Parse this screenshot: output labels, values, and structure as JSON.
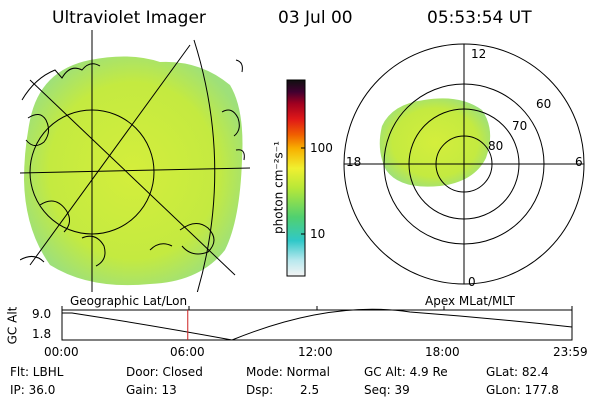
{
  "header": {
    "title": "Ultraviolet Imager",
    "date": "03 Jul 00",
    "time": "05:53:54 UT"
  },
  "colorbar": {
    "label": "photon cm⁻²s⁻¹",
    "ticks": [
      "100",
      "10"
    ]
  },
  "polar_plot": {
    "mlt_labels": {
      "top": "12",
      "left": "18",
      "right": "6",
      "bottom": "0"
    },
    "lat_labels": [
      "60",
      "70",
      "80"
    ]
  },
  "panel_labels": {
    "left": "Geographic Lat/Lon",
    "right": "Apex MLat/MLT"
  },
  "timeline": {
    "ylabel": "GC Alt",
    "yticks": [
      "9.0",
      "1.8"
    ],
    "xticks": [
      "00:00",
      "06:00",
      "12:00",
      "18:00",
      "23:59"
    ],
    "marker_fraction": 0.2466
  },
  "info": {
    "flt": "Flt: LBHL",
    "ip": "IP: 36.0",
    "door": "Door: Closed",
    "gain": "Gain: 13",
    "mode": "Mode: Normal",
    "dsp_label": "Dsp:",
    "dsp_value": "2.5",
    "gc_alt": "GC Alt: 4.9 Re",
    "seq": "Seq: 39",
    "glat": "GLat:  82.4",
    "glon": "GLon: 177.8"
  },
  "colors": {
    "aurora_fill": "#c8ec3a",
    "marker": "#cc2222"
  }
}
